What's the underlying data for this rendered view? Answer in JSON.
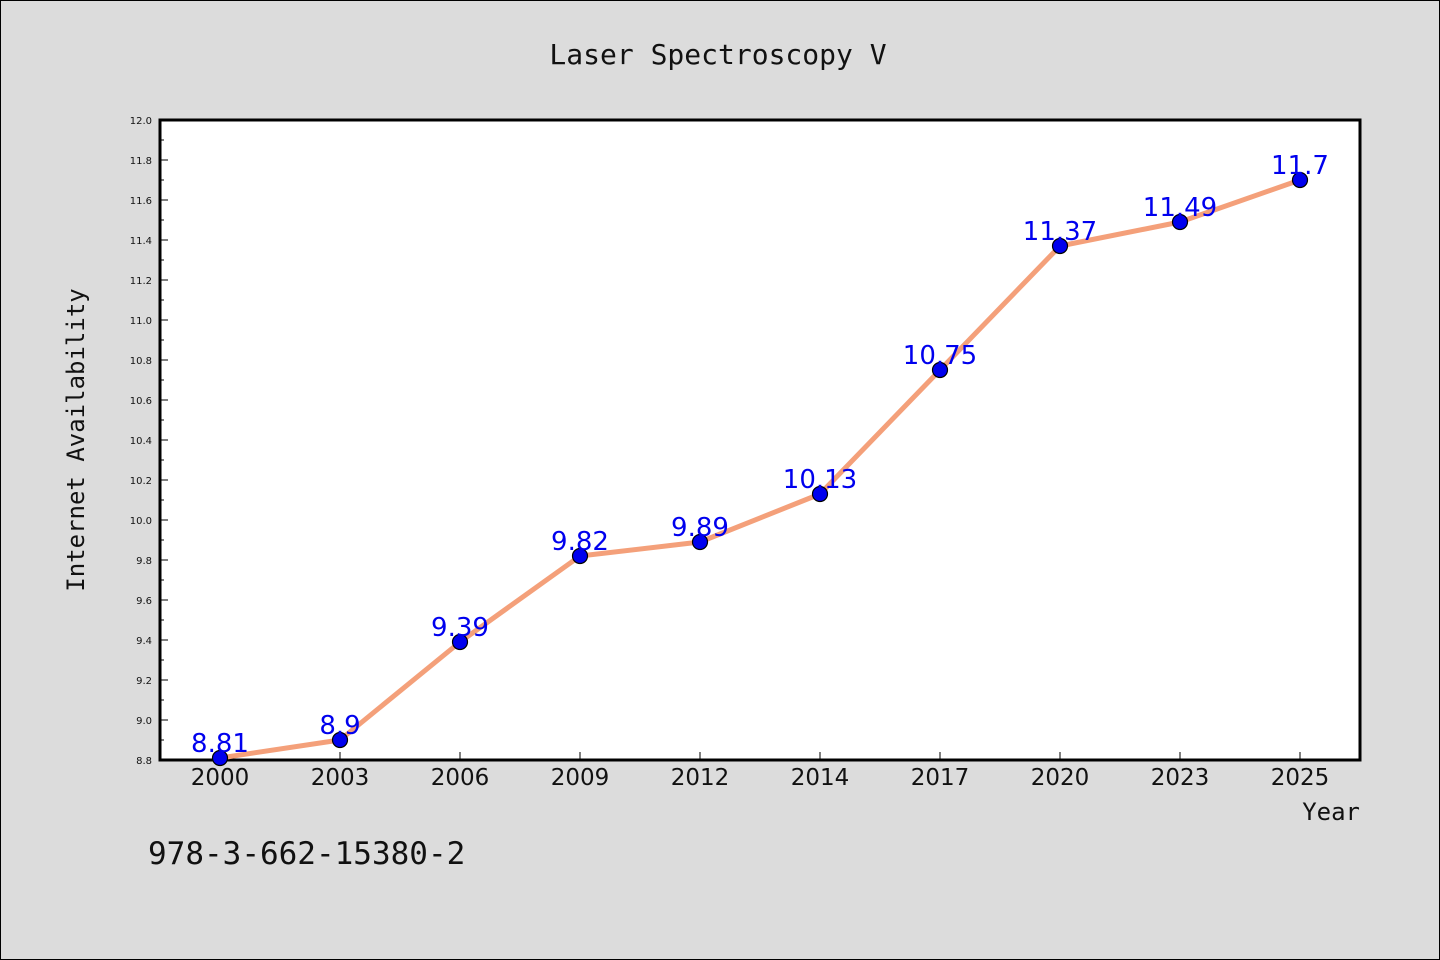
{
  "chart_data": {
    "type": "line",
    "title": "Laser Spectroscopy V",
    "xlabel": "Year",
    "ylabel": "Internet Availability",
    "categories": [
      "2000",
      "2003",
      "2006",
      "2009",
      "2012",
      "2014",
      "2017",
      "2020",
      "2023",
      "2025"
    ],
    "series": [
      {
        "values": [
          8.81,
          8.9,
          9.39,
          9.82,
          9.89,
          10.13,
          10.75,
          11.37,
          11.49,
          11.7
        ],
        "labels": [
          "8.81",
          "8.9",
          "9.39",
          "9.82",
          "9.89",
          "10.13",
          "10.75",
          "11.37",
          "11.49",
          "11.7"
        ]
      }
    ],
    "ylim": [
      8.8,
      12.0
    ],
    "yticks": [
      "8.8",
      "9.0",
      "9.2",
      "9.4",
      "9.6",
      "9.8",
      "10.0",
      "10.2",
      "10.4",
      "10.6",
      "10.8",
      "11.0",
      "11.2",
      "11.4",
      "11.6",
      "11.8",
      "12.0"
    ],
    "grid": false,
    "legend": "none",
    "colors": {
      "line": "#f4a07a",
      "marker": "#0000ee",
      "data_label": "#0000ee",
      "background": "#dcdcdc",
      "plot_background": "#ffffff"
    }
  },
  "footer": {
    "isbn": "978-3-662-15380-2"
  }
}
